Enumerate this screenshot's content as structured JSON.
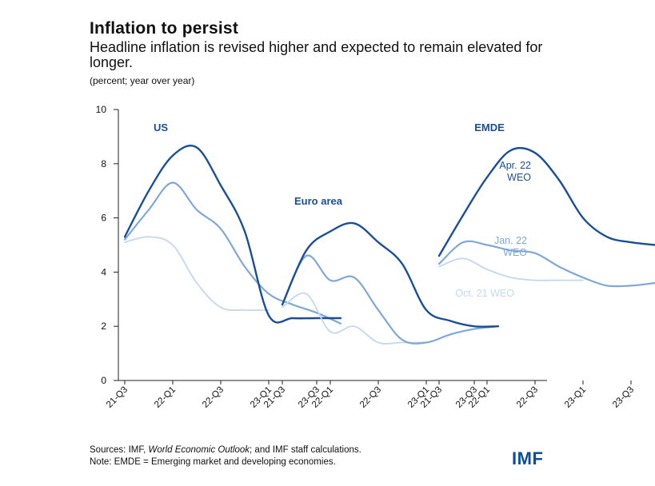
{
  "colors": {
    "apr22": "#1a4f97",
    "jan22": "#7fa8d6",
    "oct21": "#c3d8ee",
    "axis": "#222222",
    "label": "#1a4f97",
    "logo": "#0b4f9c"
  },
  "page": {
    "title": "Inflation to persist",
    "subtitle": "Headline inflation is revised higher and expected to remain elevated for longer.",
    "unit": "(percent; year over year)"
  },
  "footer": {
    "sources_prefix": "Sources: IMF, ",
    "sources_italic": "World Economic Outlook",
    "sources_suffix": "; and IMF staff calculations.",
    "note": "Note: EMDE = Emerging market and developing economies.",
    "logo": "IMF"
  },
  "chart_data": {
    "type": "line",
    "ylim": [
      0,
      10
    ],
    "yticks": [
      0,
      2,
      4,
      6,
      8,
      10
    ],
    "tick_labels": [
      "21-Q3",
      "22-Q1",
      "22-Q3",
      "23-Q1",
      "23-Q3"
    ],
    "legend": {
      "apr22": "Apr. 22\nWEO",
      "jan22": "Jan. 22\nWEO",
      "oct21": "Oct. 21 WEO"
    },
    "panels": [
      {
        "name": "US",
        "series": [
          {
            "name": "Oct. 21 WEO",
            "key": "oct21",
            "x": [
              0,
              0.5,
              1,
              1.5,
              2,
              2.5,
              3
            ],
            "values": [
              5.1,
              5.3,
              5.0,
              3.6,
              2.7,
              2.6,
              2.6
            ]
          },
          {
            "name": "Jan. 22 WEO",
            "key": "jan22",
            "x": [
              0,
              0.5,
              1,
              1.5,
              2,
              2.5,
              3,
              3.5,
              4,
              4.5
            ],
            "values": [
              5.2,
              6.3,
              7.3,
              6.3,
              5.6,
              4.2,
              3.2,
              2.8,
              2.5,
              2.1
            ]
          },
          {
            "name": "Apr. 22 WEO",
            "key": "apr22",
            "x": [
              0,
              0.5,
              1,
              1.5,
              2,
              2.5,
              3,
              3.5,
              4,
              4.5
            ],
            "values": [
              5.3,
              7.0,
              8.3,
              8.6,
              7.2,
              5.5,
              2.4,
              2.3,
              2.3,
              2.3
            ]
          }
        ]
      },
      {
        "name": "Euro area",
        "series": [
          {
            "name": "Oct. 21 WEO",
            "key": "oct21",
            "x": [
              0,
              0.5,
              1,
              1.5,
              2,
              2.5,
              3
            ],
            "values": [
              2.7,
              3.2,
              1.8,
              2.0,
              1.4,
              1.4,
              1.4
            ]
          },
          {
            "name": "Jan. 22 WEO",
            "key": "jan22",
            "x": [
              0,
              0.5,
              1,
              1.5,
              2,
              2.5,
              3,
              3.5,
              4,
              4.5
            ],
            "values": [
              2.8,
              4.6,
              3.7,
              3.8,
              2.6,
              1.5,
              1.4,
              1.7,
              1.9,
              2.0
            ]
          },
          {
            "name": "Apr. 22 WEO",
            "key": "apr22",
            "x": [
              0,
              0.5,
              1,
              1.5,
              2,
              2.5,
              3,
              3.5,
              4,
              4.5
            ],
            "values": [
              2.8,
              4.8,
              5.5,
              5.8,
              5.1,
              4.3,
              2.6,
              2.2,
              2.0,
              2.0
            ]
          }
        ]
      },
      {
        "name": "EMDE",
        "series": [
          {
            "name": "Oct. 21 WEO",
            "key": "oct21",
            "x": [
              0,
              0.5,
              1,
              1.5,
              2,
              2.5,
              3
            ],
            "values": [
              4.2,
              4.5,
              4.1,
              3.8,
              3.7,
              3.7,
              3.7
            ]
          },
          {
            "name": "Jan. 22 WEO",
            "key": "jan22",
            "x": [
              0,
              0.5,
              1,
              1.5,
              2,
              2.5,
              3,
              3.5,
              4,
              4.5
            ],
            "values": [
              4.3,
              5.1,
              5.0,
              4.8,
              4.7,
              4.2,
              3.8,
              3.5,
              3.5,
              3.6
            ]
          },
          {
            "name": "Apr. 22 WEO",
            "key": "apr22",
            "x": [
              0,
              0.5,
              1,
              1.5,
              2,
              2.5,
              3,
              3.5,
              4,
              4.5
            ],
            "values": [
              4.6,
              6.1,
              7.5,
              8.5,
              8.4,
              7.4,
              6.0,
              5.3,
              5.1,
              5.0
            ]
          }
        ]
      }
    ]
  }
}
